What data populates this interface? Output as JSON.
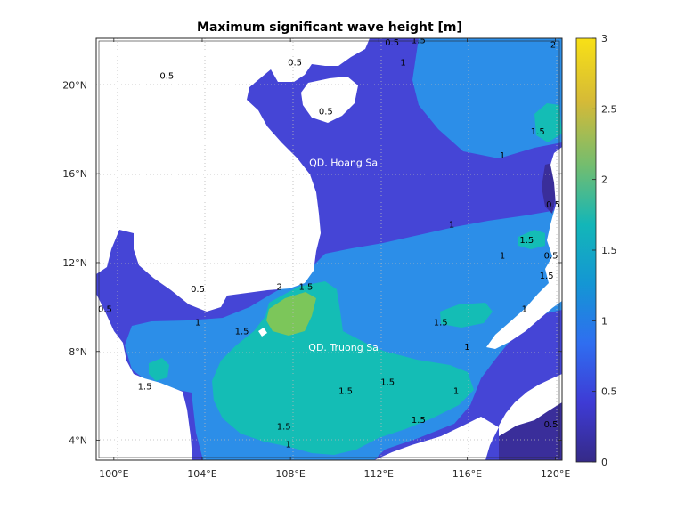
{
  "chart_data": {
    "type": "heatmap",
    "title": "Maximum significant wave height [m]",
    "xlabel": "",
    "ylabel": "",
    "xlim": [
      99.2,
      120.3
    ],
    "ylim": [
      3.1,
      22.1
    ],
    "x_ticks": [
      {
        "value": 100,
        "label": "100°E"
      },
      {
        "value": 104,
        "label": "104°E"
      },
      {
        "value": 108,
        "label": "108°E"
      },
      {
        "value": 112,
        "label": "112°E"
      },
      {
        "value": 116,
        "label": "116°E"
      },
      {
        "value": 120,
        "label": "120°E"
      }
    ],
    "y_ticks": [
      {
        "value": 4,
        "label": "4°N"
      },
      {
        "value": 8,
        "label": "8°N"
      },
      {
        "value": 12,
        "label": "12°N"
      },
      {
        "value": 16,
        "label": "16°N"
      },
      {
        "value": 20,
        "label": "20°N"
      }
    ],
    "colorbar": {
      "min": 0,
      "max": 3,
      "ticks": [
        {
          "value": 0,
          "label": "0"
        },
        {
          "value": 0.5,
          "label": "0.5"
        },
        {
          "value": 1,
          "label": "1"
        },
        {
          "value": 1.5,
          "label": "1.5"
        },
        {
          "value": 2,
          "label": "2"
        },
        {
          "value": 2.5,
          "label": "2.5"
        },
        {
          "value": 3,
          "label": "3"
        }
      ],
      "colormap": "parula",
      "stops": [
        "#352a87",
        "#3e3bd5",
        "#2f6ef0",
        "#1496d4",
        "#13b6b8",
        "#73bd6f",
        "#d5ba37",
        "#f8e016"
      ]
    },
    "grid": true,
    "fill_levels": {
      "land": "#ffffff",
      "level_0_0_5": "#4545d6",
      "level_0_5_1": "#3a57e6",
      "level_1_1_5": "#2c8ee8",
      "level_1_5_2": "#14bdb5",
      "level_2_2_5": "#7cc65a",
      "level_low_coast": "#3a2e9a"
    },
    "contour_labels": [
      {
        "text": "0.5",
        "lon": 102.4,
        "lat": 20.4
      },
      {
        "text": "0.5",
        "lon": 108.2,
        "lat": 21.0
      },
      {
        "text": "0.5",
        "lon": 112.6,
        "lat": 21.9
      },
      {
        "text": "1.5",
        "lon": 113.8,
        "lat": 22.0
      },
      {
        "text": "1",
        "lon": 113.1,
        "lat": 21.0
      },
      {
        "text": "0.5",
        "lon": 109.6,
        "lat": 18.8
      },
      {
        "text": "2",
        "lon": 119.9,
        "lat": 21.8
      },
      {
        "text": "1.5",
        "lon": 119.2,
        "lat": 17.9
      },
      {
        "text": "1",
        "lon": 117.6,
        "lat": 16.8
      },
      {
        "text": "0.5",
        "lon": 119.9,
        "lat": 14.6
      },
      {
        "text": "1",
        "lon": 115.3,
        "lat": 13.7
      },
      {
        "text": "1.5",
        "lon": 118.7,
        "lat": 13.0
      },
      {
        "text": "1",
        "lon": 117.6,
        "lat": 12.3
      },
      {
        "text": "0.5",
        "lon": 119.8,
        "lat": 12.3
      },
      {
        "text": "1.5",
        "lon": 119.6,
        "lat": 11.4
      },
      {
        "text": "1",
        "lon": 118.6,
        "lat": 9.9
      },
      {
        "text": "1.5",
        "lon": 108.7,
        "lat": 10.9
      },
      {
        "text": "2",
        "lon": 107.5,
        "lat": 10.9
      },
      {
        "text": "1.5",
        "lon": 114.8,
        "lat": 9.3
      },
      {
        "text": "0.5",
        "lon": 103.8,
        "lat": 10.8
      },
      {
        "text": "0.5",
        "lon": 99.6,
        "lat": 9.9
      },
      {
        "text": "1",
        "lon": 103.8,
        "lat": 9.3
      },
      {
        "text": "1.5",
        "lon": 105.8,
        "lat": 8.9
      },
      {
        "text": "1",
        "lon": 116.0,
        "lat": 8.2
      },
      {
        "text": "1.5",
        "lon": 101.4,
        "lat": 6.4
      },
      {
        "text": "1.5",
        "lon": 110.5,
        "lat": 6.2
      },
      {
        "text": "1.5",
        "lon": 112.4,
        "lat": 6.6
      },
      {
        "text": "1",
        "lon": 115.5,
        "lat": 6.2
      },
      {
        "text": "1.5",
        "lon": 113.8,
        "lat": 4.9
      },
      {
        "text": "1.5",
        "lon": 107.7,
        "lat": 4.6
      },
      {
        "text": "1",
        "lon": 107.9,
        "lat": 3.8
      },
      {
        "text": "0.5",
        "lon": 119.8,
        "lat": 4.7
      }
    ],
    "annotations": [
      {
        "text": "QD. Hoang Sa",
        "lon": 110.4,
        "lat": 16.5
      },
      {
        "text": "QD. Truong Sa",
        "lon": 110.4,
        "lat": 8.2
      }
    ]
  }
}
